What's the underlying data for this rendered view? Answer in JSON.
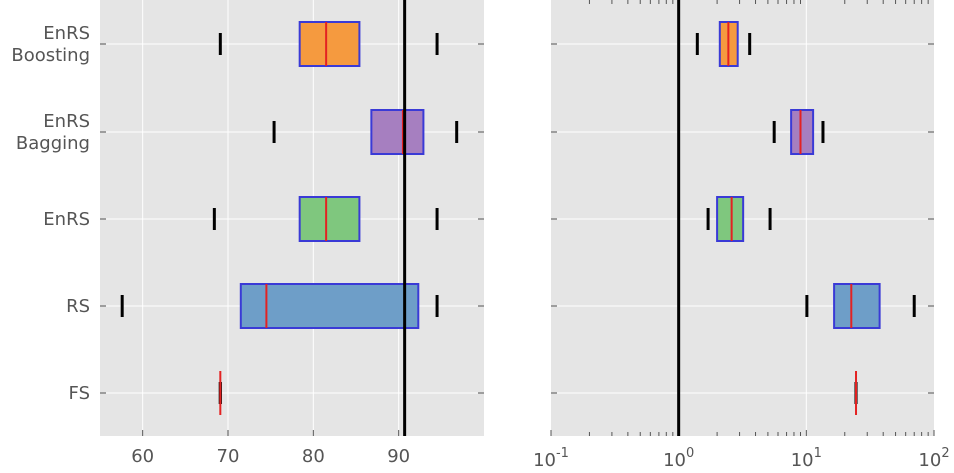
{
  "chart_data": [
    {
      "type": "box",
      "panel": "left",
      "xscale": "linear",
      "xlim": [
        55,
        100
      ],
      "xticks": [
        60,
        70,
        80,
        90
      ],
      "xtick_labels": [
        "60",
        "70",
        "80",
        "90"
      ],
      "reference_line": 90.7,
      "grid": true,
      "categories": [
        "EnRS\nBoosting",
        "EnRS\nBagging",
        "EnRS",
        "RS",
        "FS"
      ],
      "boxes": [
        {
          "category": "EnRS\nBoosting",
          "whisker_low": 69.1,
          "q1": 78.4,
          "median": 81.5,
          "q3": 85.4,
          "whisker_high": 94.5,
          "color": "#f59a3f"
        },
        {
          "category": "EnRS\nBagging",
          "whisker_low": 75.4,
          "q1": 86.8,
          "median": 90.5,
          "q3": 92.9,
          "whisker_high": 96.8,
          "color": "#a67fc0"
        },
        {
          "category": "EnRS",
          "whisker_low": 68.4,
          "q1": 78.4,
          "median": 81.5,
          "q3": 85.4,
          "whisker_high": 94.5,
          "color": "#7fc77e"
        },
        {
          "category": "RS",
          "whisker_low": 57.6,
          "q1": 71.5,
          "median": 74.5,
          "q3": 92.3,
          "whisker_high": 94.5,
          "color": "#6e9ec8"
        },
        {
          "category": "FS",
          "whisker_low": 69.1,
          "q1": 69.1,
          "median": 69.1,
          "q3": 69.1,
          "whisker_high": 69.1,
          "color": "#6e9ec8"
        }
      ]
    },
    {
      "type": "box",
      "panel": "right",
      "xscale": "log",
      "xlim": [
        0.1,
        100
      ],
      "xticks": [
        0.1,
        1,
        10,
        100
      ],
      "xtick_labels": [
        {
          "base": "10",
          "exp": "-1"
        },
        {
          "base": "10",
          "exp": "0"
        },
        {
          "base": "10",
          "exp": "1"
        },
        {
          "base": "10",
          "exp": "2"
        }
      ],
      "reference_line": 1,
      "grid": true,
      "categories": [
        "EnRS\nBoosting",
        "EnRS\nBagging",
        "EnRS",
        "RS",
        "FS"
      ],
      "boxes": [
        {
          "category": "EnRS\nBoosting",
          "whisker_low": 1.4,
          "q1": 2.1,
          "median": 2.45,
          "q3": 2.9,
          "whisker_high": 3.6,
          "color": "#f59a3f"
        },
        {
          "category": "EnRS\nBagging",
          "whisker_low": 5.6,
          "q1": 7.6,
          "median": 9.0,
          "q3": 11.3,
          "whisker_high": 13.5,
          "color": "#a67fc0"
        },
        {
          "category": "EnRS",
          "whisker_low": 1.7,
          "q1": 2.0,
          "median": 2.6,
          "q3": 3.2,
          "whisker_high": 5.2,
          "color": "#7fc77e"
        },
        {
          "category": "RS",
          "whisker_low": 10.1,
          "q1": 16.5,
          "median": 22.5,
          "q3": 37.5,
          "whisker_high": 70.0,
          "color": "#6e9ec8"
        },
        {
          "category": "FS",
          "whisker_low": 24.5,
          "q1": 24.5,
          "median": 24.5,
          "q3": 24.5,
          "whisker_high": 24.5,
          "color": "#6e9ec8"
        }
      ]
    }
  ],
  "colors": {
    "plot_background": "#e5e5e5",
    "grid": "#ffffff",
    "box_edge": "#3a3ad6",
    "median": "#e32222",
    "whisker_cap": "#000000",
    "reference_line": "#000000",
    "tick_label": "#555555"
  }
}
